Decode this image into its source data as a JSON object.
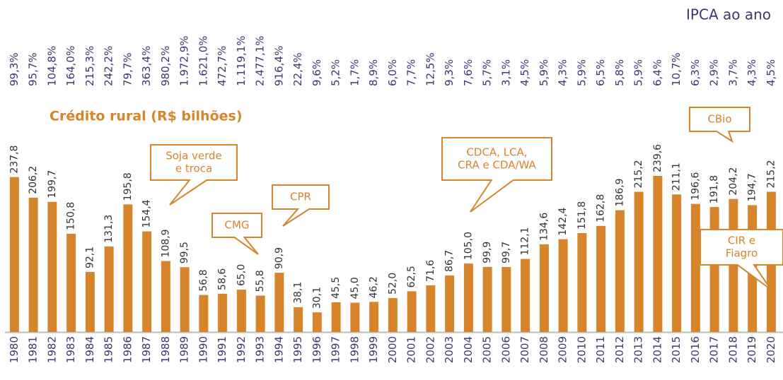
{
  "chart_data": {
    "type": "bar",
    "title": "Crédito rural (R$ bilhões)",
    "subtitle": "IPCA ao ano",
    "color": "#d6852c",
    "categories": [
      "1980",
      "1981",
      "1982",
      "1983",
      "1984",
      "1985",
      "1986",
      "1987",
      "1988",
      "1989",
      "1990",
      "1991",
      "1992",
      "1993",
      "1994",
      "1995",
      "1996",
      "1997",
      "1998",
      "1999",
      "2000",
      "2001",
      "2002",
      "2003",
      "2004",
      "2005",
      "2006",
      "2007",
      "2008",
      "2009",
      "2010",
      "2011",
      "2012",
      "2013",
      "2014",
      "2015",
      "2016",
      "2017",
      "2018",
      "2019",
      "2020"
    ],
    "values": [
      237.8,
      206.2,
      199.7,
      150.8,
      92.1,
      131.3,
      195.8,
      154.4,
      108.9,
      99.5,
      56.8,
      58.6,
      65.0,
      55.8,
      90.9,
      38.1,
      30.1,
      45.5,
      45.0,
      46.2,
      52.0,
      62.5,
      71.6,
      86.7,
      105.0,
      99.9,
      99.7,
      112.1,
      134.6,
      142.4,
      151.8,
      162.8,
      186.9,
      215.2,
      239.6,
      211.1,
      196.6,
      191.8,
      204.2,
      194.7,
      215.2
    ],
    "value_labels": [
      "237,8",
      "206,2",
      "199,7",
      "150,8",
      "92,1",
      "131,3",
      "195,8",
      "154,4",
      "108,9",
      "99,5",
      "56,8",
      "58,6",
      "65,0",
      "55,8",
      "90,9",
      "38,1",
      "30,1",
      "45,5",
      "45,0",
      "46,2",
      "52,0",
      "62,5",
      "71,6",
      "86,7",
      "105,0",
      "99,9",
      "99,7",
      "112,1",
      "134,6",
      "142,4",
      "151,8",
      "162,8",
      "186,9",
      "215,2",
      "239,6",
      "211,1",
      "196,6",
      "191,8",
      "204,2",
      "194,7",
      "215,2"
    ],
    "ipca": {
      "values": [
        99.3,
        95.7,
        104.8,
        164.0,
        215.3,
        242.2,
        79.7,
        363.4,
        980.2,
        1972.9,
        1621.0,
        472.7,
        1119.1,
        2477.1,
        916.4,
        22.4,
        9.6,
        5.2,
        1.7,
        8.9,
        6.0,
        7.7,
        12.5,
        9.3,
        7.6,
        5.7,
        3.1,
        4.5,
        5.9,
        4.3,
        5.9,
        6.5,
        5.8,
        5.9,
        6.4,
        10.7,
        6.3,
        2.9,
        3.7,
        4.3,
        4.5
      ],
      "value_labels": [
        "99,3%",
        "95,7%",
        "104,8%",
        "164,0%",
        "215,3%",
        "242,2%",
        "79,7%",
        "363,4%",
        "980,2%",
        "1.972,9%",
        "1.621,0%",
        "472,7%",
        "1.119,1%",
        "2.477,1%",
        "916,4%",
        "22,4%",
        "9,6%",
        "5,2%",
        "1,7%",
        "8,9%",
        "6,0%",
        "7,7%",
        "12,5%",
        "9,3%",
        "7,6%",
        "5,7%",
        "3,1%",
        "4,5%",
        "5,9%",
        "4,3%",
        "5,9%",
        "6,5%",
        "5,8%",
        "5,9%",
        "6,4%",
        "10,7%",
        "6,3%",
        "2,9%",
        "3,7%",
        "4,3%",
        "4,5%"
      ]
    },
    "annotations": [
      {
        "lines": [
          "Soja verde",
          "e troca"
        ]
      },
      {
        "lines": [
          "CMG"
        ]
      },
      {
        "lines": [
          "CPR"
        ]
      },
      {
        "lines": [
          "CDCA, LCA,",
          "CRA e CDA/WA"
        ]
      },
      {
        "lines": [
          "CBio"
        ]
      },
      {
        "lines": [
          "CIR e",
          "Fiagro"
        ]
      }
    ]
  }
}
